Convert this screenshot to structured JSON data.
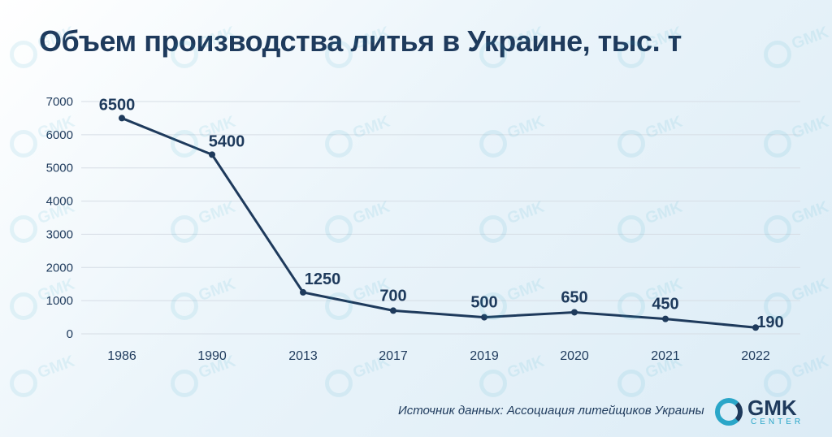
{
  "title": "Объем производства литья в Украине, тыс. т",
  "source": "Источник данных: Ассоциация литейщиков Украины",
  "logo": {
    "name": "GMK",
    "sub": "CENTER"
  },
  "watermark_text": "GMK",
  "colors": {
    "line": "#1e3a5c",
    "accent": "#2aa6c8",
    "grid": "#d6dde5"
  },
  "chart_data": {
    "type": "line",
    "categories": [
      "1986",
      "1990",
      "2013",
      "2017",
      "2019",
      "2020",
      "2021",
      "2022"
    ],
    "values": [
      6500,
      5400,
      1250,
      700,
      500,
      650,
      450,
      190
    ],
    "yticks": [
      0,
      1000,
      2000,
      3000,
      4000,
      5000,
      6000,
      7000
    ],
    "ylim": [
      0,
      7000
    ],
    "grid": true,
    "legend": false
  }
}
